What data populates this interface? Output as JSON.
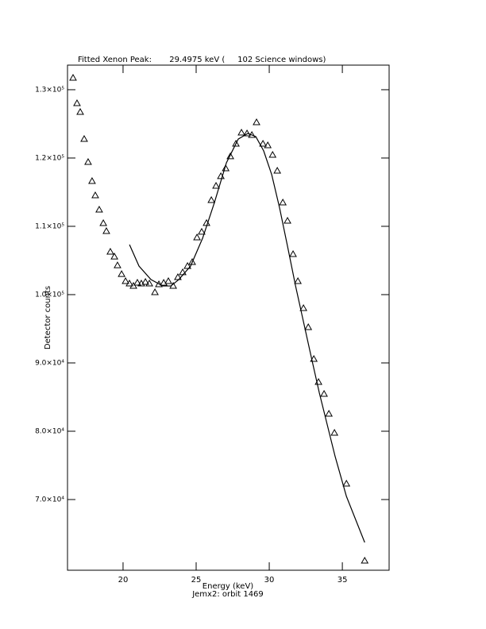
{
  "chart_data": {
    "type": "scatter",
    "title": "Fitted Xenon Peak:       29.4975 keV (     102 Science windows)",
    "x_label": "Energy (keV)",
    "subtitle": "Jemx2: orbit 1469",
    "y_label": "Detector counts",
    "xlim": [
      16.2,
      38.2
    ],
    "ylim": [
      59650,
      133600
    ],
    "xticks": [
      20,
      25,
      30,
      35
    ],
    "yticks": [
      {
        "value": 70000,
        "label": "7.0×10⁴"
      },
      {
        "value": 80000,
        "label": "8.0×10⁴"
      },
      {
        "value": 90000,
        "label": "9.0×10⁴"
      },
      {
        "value": 100000,
        "label": "1.0×10⁵"
      },
      {
        "value": 110000,
        "label": "1.1×10⁵"
      },
      {
        "value": 120000,
        "label": "1.2×10⁵"
      },
      {
        "value": 130000,
        "label": "1.3×10⁵"
      }
    ],
    "color": "#000000",
    "series": [
      {
        "type": "scatter",
        "marker": "triangle",
        "x": [
          16.58,
          16.85,
          17.07,
          17.34,
          17.61,
          17.88,
          18.1,
          18.37,
          18.65,
          18.86,
          19.13,
          19.41,
          19.62,
          19.9,
          20.17,
          20.44,
          20.71,
          20.98,
          21.25,
          21.53,
          21.8,
          22.18,
          22.45,
          22.78,
          23.1,
          23.43,
          23.75,
          24.08,
          24.41,
          24.73,
          25.06,
          25.38,
          25.71,
          26.04,
          26.36,
          26.69,
          27.02,
          27.34,
          27.72,
          28.1,
          28.48,
          28.81,
          29.13,
          29.57,
          29.9,
          30.23,
          30.55,
          30.93,
          31.25,
          31.63,
          31.96,
          32.34,
          32.67,
          33.05,
          33.37,
          33.75,
          34.08,
          34.46,
          35.28,
          36.53
        ],
        "values": [
          131740,
          128020,
          126740,
          122790,
          119410,
          116620,
          114530,
          112440,
          110460,
          109300,
          106270,
          105570,
          104290,
          103010,
          101970,
          101620,
          101280,
          101740,
          101620,
          101860,
          101620,
          100340,
          101510,
          101730,
          101970,
          101270,
          102550,
          103260,
          104190,
          104770,
          108370,
          109190,
          110470,
          113840,
          115930,
          117330,
          118490,
          120240,
          122090,
          123720,
          123600,
          123370,
          125230,
          122090,
          121860,
          120460,
          118140,
          113480,
          110810,
          105930,
          101970,
          98020,
          95230,
          90580,
          87200,
          85460,
          82550,
          79760,
          72320,
          61040
        ]
      },
      {
        "type": "line",
        "x": [
          20.44,
          21.09,
          21.91,
          22.72,
          23.27,
          23.81,
          24.62,
          25.44,
          26.25,
          27.07,
          27.88,
          28.54,
          29.08,
          29.62,
          30.17,
          30.71,
          31.25,
          31.8,
          32.34,
          32.88,
          33.43,
          33.97,
          34.51,
          35.28,
          36.53
        ],
        "values": [
          107320,
          104180,
          102200,
          101270,
          101270,
          102200,
          104180,
          108250,
          113480,
          119300,
          122780,
          123600,
          123140,
          121040,
          117560,
          112670,
          107090,
          101280,
          96040,
          90810,
          85580,
          80930,
          76280,
          70460,
          63720
        ]
      }
    ]
  }
}
